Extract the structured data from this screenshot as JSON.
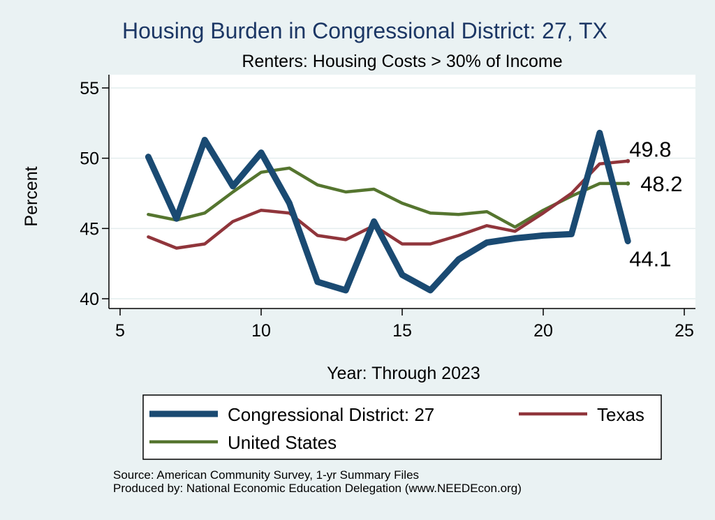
{
  "chart_data": {
    "type": "line",
    "title": "Housing Burden in Congressional District:  27, TX",
    "subtitle": "Renters: Housing Costs > 30% of Income",
    "xlabel": "Year: Through 2023",
    "ylabel": "Percent",
    "xlim": [
      5,
      25
    ],
    "ylim": [
      40,
      55
    ],
    "x_ticks": [
      5,
      10,
      15,
      20,
      25
    ],
    "y_ticks": [
      40,
      45,
      50,
      55
    ],
    "grid": true,
    "legend_position": "bottom",
    "x": [
      6,
      7,
      8,
      9,
      10,
      11,
      12,
      13,
      14,
      15,
      16,
      17,
      18,
      19,
      20,
      21,
      22,
      23
    ],
    "series": [
      {
        "name": "Congressional District:  27",
        "color": "#1a4a72",
        "values": [
          50.1,
          45.7,
          51.3,
          48.0,
          50.4,
          46.8,
          41.2,
          40.6,
          45.5,
          41.7,
          40.6,
          42.8,
          44.0,
          44.3,
          44.5,
          44.6,
          51.8,
          44.1
        ],
        "end_label": "44.1"
      },
      {
        "name": "Texas",
        "color": "#90353b",
        "values": [
          44.4,
          43.6,
          43.9,
          45.5,
          46.3,
          46.1,
          44.5,
          44.2,
          45.2,
          43.9,
          43.9,
          44.5,
          45.2,
          44.8,
          46.1,
          47.5,
          49.6,
          49.8
        ],
        "end_label": "49.8"
      },
      {
        "name": "United States",
        "color": "#55752f",
        "values": [
          46.0,
          45.6,
          46.1,
          47.6,
          49.0,
          49.3,
          48.1,
          47.6,
          47.8,
          46.8,
          46.1,
          46.0,
          46.2,
          45.1,
          46.3,
          47.3,
          48.2,
          48.2
        ],
        "end_label": "48.2"
      }
    ]
  },
  "notes": {
    "source": "Source: American Community Survey, 1-yr Summary Files",
    "produced_by": "Produced by: National Economic Education Delegation (www.NEEDEcon.org)"
  }
}
